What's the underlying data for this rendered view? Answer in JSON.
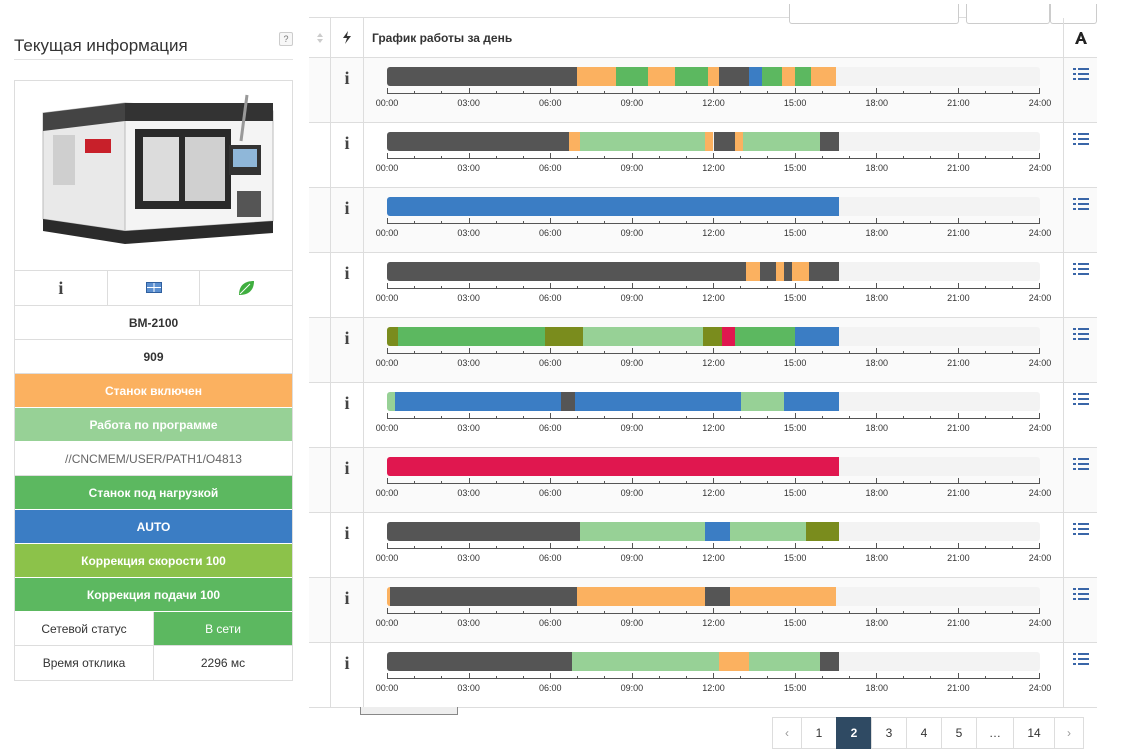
{
  "panel": {
    "title": "Текущая информация",
    "help": "?",
    "model": "BM-2100",
    "number": "909",
    "statuses": [
      {
        "label": "Станок включен",
        "color": "#fbb160"
      },
      {
        "label": "Работа по программе",
        "color": "#97d196"
      },
      {
        "label": "//CNCMEM/USER/PATH1/O4813",
        "color": ""
      },
      {
        "label": "Станок под нагрузкой",
        "color": "#5cb860"
      },
      {
        "label": "AUTO",
        "color": "#3b7dc4"
      },
      {
        "label": "Коррекция скорости 100",
        "color": "#8cc24a"
      },
      {
        "label": "Коррекция подачи 100",
        "color": "#5cb860"
      }
    ],
    "network_label": "Сетевой статус",
    "network_value": "В сети",
    "network_color": "#5cb860",
    "response_label": "Время отклика",
    "response_value": "2296 мс"
  },
  "table": {
    "header": "График работы за день",
    "time_labels": [
      "00:00",
      "03:00",
      "06:00",
      "09:00",
      "12:00",
      "15:00",
      "18:00",
      "21:00",
      "24:00"
    ],
    "colors": {
      "off": "#555555",
      "on": "#fbb160",
      "program": "#97d196",
      "load": "#5cb860",
      "auto": "#3b7dc4",
      "alarm": "#e0174f",
      "olive": "#7a8c1d",
      "pink": "#e0174f"
    },
    "rows": [
      [
        [
          0,
          7,
          "off"
        ],
        [
          7,
          8.4,
          "on"
        ],
        [
          8.4,
          9.6,
          "load"
        ],
        [
          9.6,
          10.6,
          "on"
        ],
        [
          10.6,
          11.8,
          "load"
        ],
        [
          11.8,
          12.2,
          "on"
        ],
        [
          12.2,
          13.3,
          "off"
        ],
        [
          13.3,
          13.8,
          "auto"
        ],
        [
          13.8,
          14.5,
          "load"
        ],
        [
          14.5,
          15,
          "on"
        ],
        [
          15,
          15.6,
          "load"
        ],
        [
          15.6,
          16.5,
          "on"
        ]
      ],
      [
        [
          0,
          6.7,
          "off"
        ],
        [
          6.7,
          7.1,
          "on"
        ],
        [
          7.1,
          11.7,
          "program"
        ],
        [
          11.7,
          12,
          "on"
        ],
        [
          12,
          12.8,
          "off"
        ],
        [
          12.8,
          13.1,
          "on"
        ],
        [
          13.1,
          15.9,
          "program"
        ],
        [
          15.9,
          16.6,
          "off"
        ]
      ],
      [
        [
          0,
          16.6,
          "auto"
        ]
      ],
      [
        [
          0,
          13.2,
          "off"
        ],
        [
          13.2,
          13.7,
          "on"
        ],
        [
          13.7,
          14.3,
          "off"
        ],
        [
          14.3,
          14.6,
          "on"
        ],
        [
          14.6,
          14.9,
          "off"
        ],
        [
          14.9,
          15.5,
          "on"
        ],
        [
          15.5,
          16.6,
          "off"
        ]
      ],
      [
        [
          0,
          0.4,
          "olive"
        ],
        [
          0.4,
          5.8,
          "load"
        ],
        [
          5.8,
          7.2,
          "olive"
        ],
        [
          7.2,
          11.6,
          "program"
        ],
        [
          11.6,
          12.3,
          "olive"
        ],
        [
          12.3,
          12.8,
          "pink"
        ],
        [
          12.8,
          15,
          "load"
        ],
        [
          15,
          16.6,
          "auto"
        ]
      ],
      [
        [
          0,
          0.3,
          "program"
        ],
        [
          0.3,
          6.4,
          "auto"
        ],
        [
          6.4,
          6.9,
          "off"
        ],
        [
          6.9,
          10.8,
          "auto"
        ],
        [
          10.8,
          13,
          "auto"
        ],
        [
          13,
          14.6,
          "program"
        ],
        [
          14.6,
          16.6,
          "auto"
        ]
      ],
      [
        [
          0,
          16.6,
          "alarm"
        ]
      ],
      [
        [
          0,
          7.1,
          "off"
        ],
        [
          7.1,
          11.7,
          "program"
        ],
        [
          11.7,
          12.6,
          "auto"
        ],
        [
          12.6,
          15.4,
          "program"
        ],
        [
          15.4,
          16.6,
          "olive"
        ]
      ],
      [
        [
          0,
          0.1,
          "on"
        ],
        [
          0.1,
          7,
          "off"
        ],
        [
          7,
          11.7,
          "on"
        ],
        [
          11.7,
          12.6,
          "off"
        ],
        [
          12.6,
          16.5,
          "on"
        ]
      ],
      [
        [
          0,
          6.8,
          "off"
        ],
        [
          6.8,
          12.2,
          "program"
        ],
        [
          12.2,
          13.3,
          "on"
        ],
        [
          13.3,
          15.9,
          "program"
        ],
        [
          15.9,
          16.6,
          "off"
        ]
      ]
    ]
  },
  "pager": {
    "prev": "‹",
    "pages": [
      "1",
      "2",
      "3",
      "4",
      "5",
      "…",
      "14"
    ],
    "active": "2",
    "next": "›"
  }
}
